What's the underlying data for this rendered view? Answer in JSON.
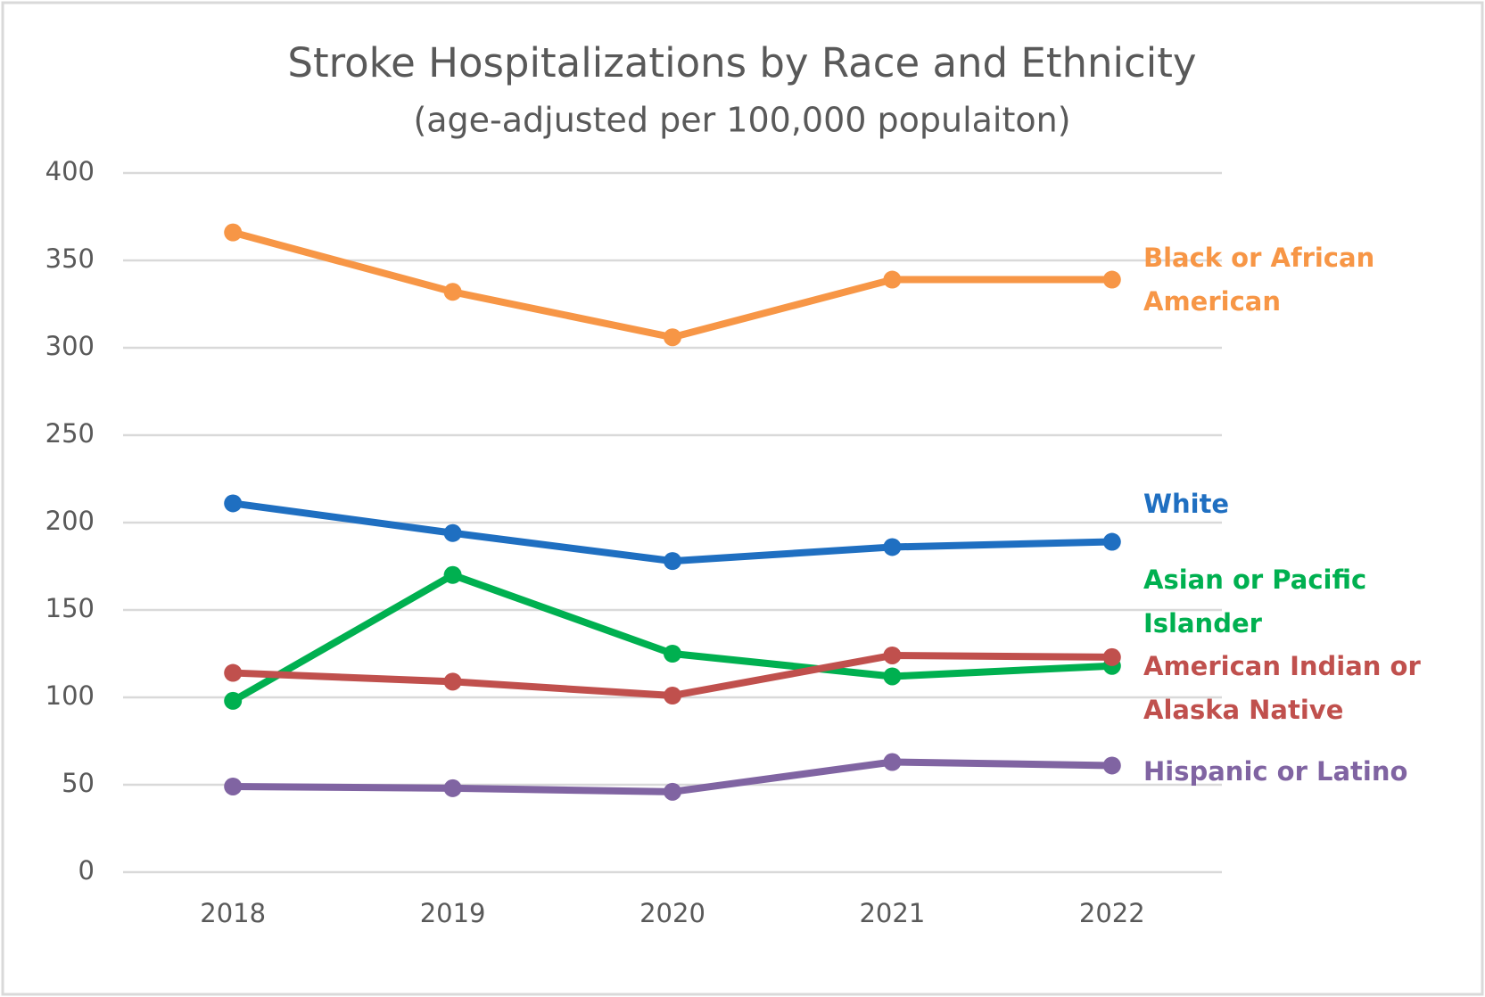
{
  "chart_data": {
    "type": "line",
    "title": "Stroke Hospitalizations by Race and Ethnicity",
    "subtitle": "(age-adjusted per 100,000 populaiton)",
    "categories": [
      "2018",
      "2019",
      "2020",
      "2021",
      "2022"
    ],
    "series": [
      {
        "name": "Black or African American",
        "color": "#f79646",
        "values": [
          366,
          332,
          306,
          339,
          339
        ]
      },
      {
        "name": "White",
        "color": "#1f6fc1",
        "values": [
          211,
          194,
          178,
          186,
          189
        ]
      },
      {
        "name": "Asian or Pacific Islander",
        "color": "#00b050",
        "values": [
          98,
          170,
          125,
          112,
          118
        ]
      },
      {
        "name": "American Indian or Alaska Native",
        "color": "#c0504d",
        "values": [
          114,
          109,
          101,
          124,
          123
        ]
      },
      {
        "name": "Hispanic or Latino",
        "color": "#8064a2",
        "values": [
          49,
          48,
          46,
          63,
          61
        ]
      }
    ],
    "ylim": [
      0,
      400
    ],
    "yticks": [
      0,
      50,
      100,
      150,
      200,
      250,
      300,
      350,
      400
    ],
    "grid": true
  }
}
